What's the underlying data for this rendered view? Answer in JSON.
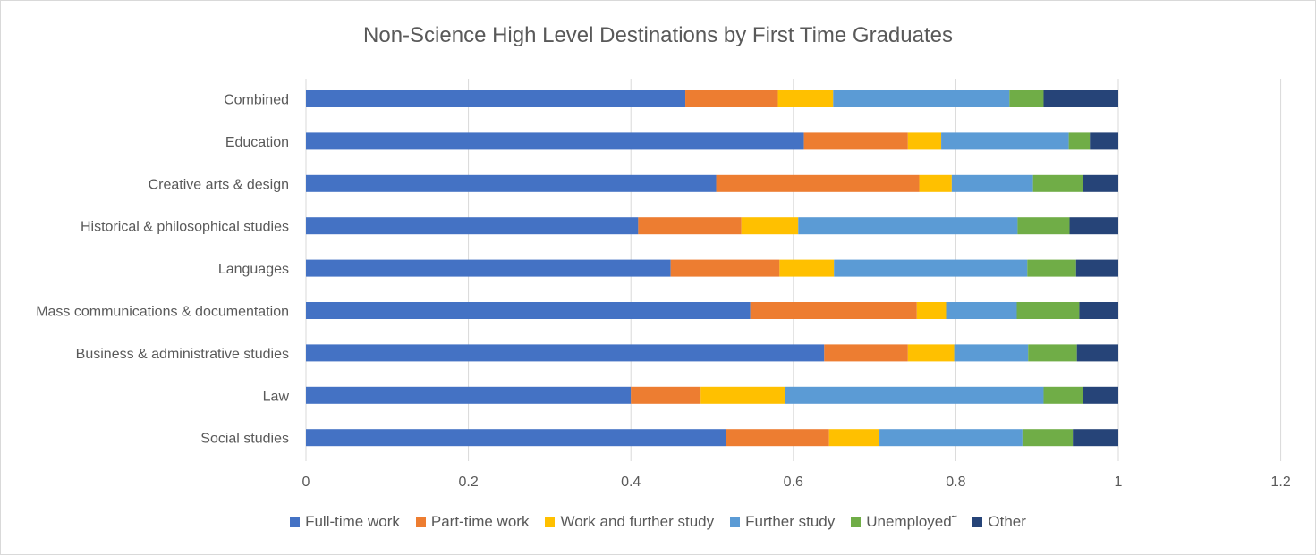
{
  "chart_data": {
    "type": "bar",
    "orientation": "horizontal",
    "stacked": true,
    "title": "Non-Science High Level Destinations by First Time Graduates",
    "categories": [
      "Combined",
      "Education",
      "Creative arts & design",
      "Historical & philosophical studies",
      "Languages",
      "Mass communications & documentation",
      "Business & administrative studies",
      "Law",
      "Social studies"
    ],
    "series": [
      {
        "name": "Full-time work",
        "color": "#4472C4",
        "values": [
          0.467,
          0.613,
          0.505,
          0.409,
          0.449,
          0.547,
          0.638,
          0.4,
          0.517
        ]
      },
      {
        "name": "Part-time work",
        "color": "#ED7D31",
        "values": [
          0.114,
          0.128,
          0.25,
          0.127,
          0.134,
          0.205,
          0.103,
          0.086,
          0.127
        ]
      },
      {
        "name": "Work and further study",
        "color": "#FFC000",
        "values": [
          0.068,
          0.041,
          0.04,
          0.07,
          0.067,
          0.036,
          0.057,
          0.104,
          0.062
        ]
      },
      {
        "name": "Further study",
        "color": "#5B9BD5",
        "values": [
          0.217,
          0.157,
          0.1,
          0.27,
          0.238,
          0.087,
          0.091,
          0.318,
          0.176
        ]
      },
      {
        "name": "Unemployed˜",
        "color": "#70AD47",
        "values": [
          0.042,
          0.026,
          0.062,
          0.064,
          0.06,
          0.077,
          0.06,
          0.049,
          0.062
        ]
      },
      {
        "name": "Other",
        "color": "#264478",
        "values": [
          0.092,
          0.035,
          0.043,
          0.06,
          0.052,
          0.048,
          0.051,
          0.043,
          0.056
        ]
      }
    ],
    "xlim": [
      0,
      1.2
    ],
    "xticks": [
      "0",
      "0.2",
      "0.4",
      "0.6",
      "0.8",
      "1",
      "1.2"
    ],
    "xtick_values": [
      0,
      0.2,
      0.4,
      0.6,
      0.8,
      1.0,
      1.2
    ],
    "grid": true,
    "legend_position": "bottom"
  }
}
